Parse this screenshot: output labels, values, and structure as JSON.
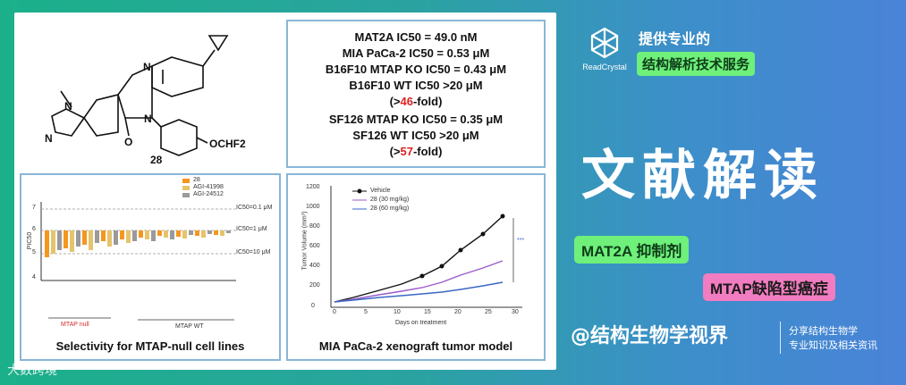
{
  "ic50_panel": {
    "line1": "MAT2A IC50 = 49.0 nM",
    "line2": "MIA PaCa-2 IC50 = 0.53 μM",
    "line3": "B16F10 MTAP KO IC50 = 0.43 μM",
    "line4": "B16F10 WT IC50 >20 μM",
    "line5_pre": "(>",
    "line5_val": "46",
    "line5_post": "-fold)",
    "line6": "SF126 MTAP KO IC50 = 0.35 μM",
    "line7": "SF126 WT IC50 >20 μM",
    "line8_pre": "(>",
    "line8_val": "57",
    "line8_post": "-fold)"
  },
  "structure": {
    "compound_number": "28",
    "substituent": "OCHF2",
    "n_label": "N",
    "o_label": "O"
  },
  "bar_panel": {
    "caption": "Selectivity for MTAP-null cell lines",
    "ylabel": "PIC50",
    "legend": [
      "28",
      "AGI-41998",
      "AGI-24512"
    ],
    "thresholds": [
      "IC50=0.1 μM",
      "IC50=1 μM",
      "IC50=10 μM"
    ],
    "group_null": "MTAP null",
    "group_wt": "MTAP WT",
    "yticks": [
      "7",
      "6",
      "5",
      "4"
    ]
  },
  "xeno_panel": {
    "caption": "MIA PaCa-2 xenograft tumor model",
    "ylabel": "Tumor Volume (mm³)",
    "xlabel": "Days on treatment",
    "legend": [
      "Vehicle",
      "28 (30 mg/kg)",
      "28 (60 mg/kg)"
    ],
    "yticks": [
      "0",
      "200",
      "400",
      "600",
      "800",
      "1000",
      "1200"
    ],
    "xticks": [
      "0",
      "5",
      "10",
      "15",
      "20",
      "25",
      "30"
    ],
    "sig": "***"
  },
  "brand": {
    "logo_name": "ReadCrystal",
    "line1": "提供专业的",
    "line2": "结构解析技术服务"
  },
  "title": "文献解读",
  "tag1": "MAT2A 抑制剂",
  "tag2": "MTAP缺陷型癌症",
  "handle": "@结构生物学视界",
  "sub1": "分享结构生物学",
  "sub2": "专业知识及相关资讯",
  "watermark": "大数跨境",
  "colors": {
    "green_pill": "#6ef07a",
    "pink_pill": "#f27cc1",
    "red": "#e02020"
  }
}
